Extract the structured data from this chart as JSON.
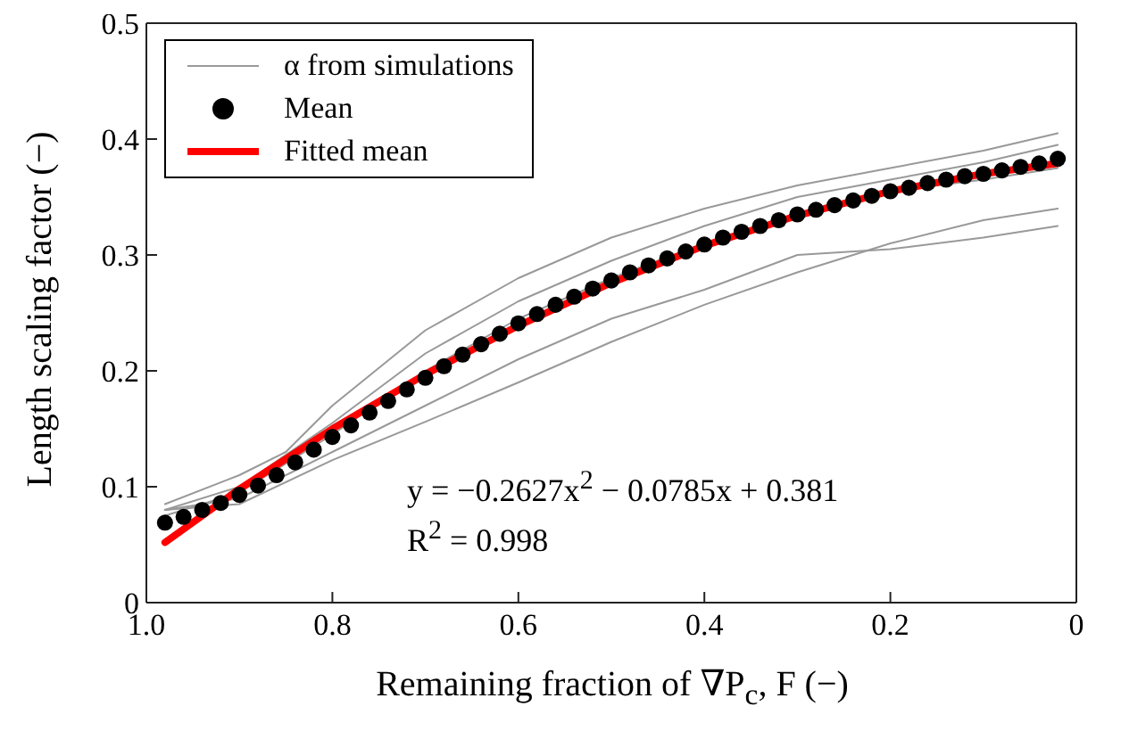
{
  "chart_data": {
    "type": "line",
    "xlabel": "Remaining fraction of  ∇P$_{c}$, F (−)",
    "ylabel": "Length scaling factor (−)",
    "xlim": [
      1,
      0
    ],
    "xticks": [
      {
        "value": 1,
        "label": "1.0"
      },
      0.8,
      0.6,
      0.4,
      0.2,
      0
    ],
    "ylim": [
      0,
      0.5
    ],
    "yticks": [
      0,
      0.1,
      0.2,
      0.3,
      0.4,
      0.5
    ],
    "legend": "top left",
    "annotations": [
      "y = −0.2627x$^{2}$ − 0.0785x + 0.381",
      "R$^{2}$ = 0.998"
    ],
    "series": [
      {
        "name": "α from simulations",
        "type": "line",
        "color": "#999999",
        "x": [
          0.98,
          0.9,
          0.85,
          0.8,
          0.7,
          0.6,
          0.5,
          0.4,
          0.3,
          0.2,
          0.1,
          0.02
        ],
        "values": [
          0.085,
          0.11,
          0.13,
          0.17,
          0.235,
          0.28,
          0.315,
          0.34,
          0.36,
          0.375,
          0.39,
          0.405
        ]
      },
      {
        "type": "line",
        "color": "#999999",
        "x": [
          0.98,
          0.9,
          0.8,
          0.7,
          0.6,
          0.5,
          0.4,
          0.3,
          0.2,
          0.1,
          0.02
        ],
        "values": [
          0.08,
          0.085,
          0.123,
          0.156,
          0.19,
          0.225,
          0.257,
          0.285,
          0.31,
          0.33,
          0.34
        ]
      },
      {
        "type": "line",
        "color": "#999999",
        "x": [
          0.98,
          0.9,
          0.8,
          0.7,
          0.6,
          0.5,
          0.4,
          0.35,
          0.3,
          0.2,
          0.1,
          0.02
        ],
        "values": [
          0.08,
          0.09,
          0.13,
          0.17,
          0.21,
          0.245,
          0.27,
          0.285,
          0.3,
          0.305,
          0.315,
          0.325
        ]
      },
      {
        "type": "line",
        "color": "#999999",
        "x": [
          0.98,
          0.9,
          0.8,
          0.7,
          0.6,
          0.5,
          0.4,
          0.3,
          0.2,
          0.1,
          0.02
        ],
        "values": [
          0.075,
          0.095,
          0.145,
          0.2,
          0.245,
          0.28,
          0.31,
          0.335,
          0.355,
          0.365,
          0.375
        ]
      },
      {
        "type": "line",
        "color": "#999999",
        "x": [
          0.98,
          0.9,
          0.8,
          0.7,
          0.6,
          0.5,
          0.4,
          0.3,
          0.2,
          0.1,
          0.02
        ],
        "values": [
          0.08,
          0.1,
          0.155,
          0.215,
          0.26,
          0.295,
          0.325,
          0.35,
          0.365,
          0.38,
          0.395
        ]
      },
      {
        "name": "Mean",
        "type": "scatter",
        "marker": "circle",
        "color": "#000000",
        "x": [
          0.98,
          0.96,
          0.94,
          0.92,
          0.9,
          0.88,
          0.86,
          0.84,
          0.82,
          0.8,
          0.78,
          0.76,
          0.74,
          0.72,
          0.7,
          0.68,
          0.66,
          0.64,
          0.62,
          0.6,
          0.58,
          0.56,
          0.54,
          0.52,
          0.5,
          0.48,
          0.46,
          0.44,
          0.42,
          0.4,
          0.38,
          0.36,
          0.34,
          0.32,
          0.3,
          0.28,
          0.26,
          0.24,
          0.22,
          0.2,
          0.18,
          0.16,
          0.14,
          0.12,
          0.1,
          0.08,
          0.06,
          0.04,
          0.02
        ],
        "values": [
          0.069,
          0.074,
          0.08,
          0.086,
          0.093,
          0.101,
          0.11,
          0.121,
          0.132,
          0.143,
          0.153,
          0.164,
          0.174,
          0.184,
          0.194,
          0.204,
          0.214,
          0.223,
          0.232,
          0.241,
          0.249,
          0.257,
          0.264,
          0.271,
          0.278,
          0.285,
          0.291,
          0.297,
          0.303,
          0.309,
          0.315,
          0.32,
          0.325,
          0.33,
          0.335,
          0.339,
          0.343,
          0.347,
          0.351,
          0.355,
          0.358,
          0.362,
          0.365,
          0.368,
          0.37,
          0.373,
          0.376,
          0.379,
          0.383
        ]
      },
      {
        "name": "Fitted mean",
        "type": "line",
        "color": "#ff0000",
        "x": [
          0.98,
          0.9,
          0.8,
          0.7,
          0.6,
          0.5,
          0.4,
          0.3,
          0.2,
          0.1,
          0.02
        ],
        "values": [
          0.052,
          0.098,
          0.15,
          0.197,
          0.239,
          0.276,
          0.308,
          0.334,
          0.355,
          0.37,
          0.379
        ]
      }
    ]
  }
}
